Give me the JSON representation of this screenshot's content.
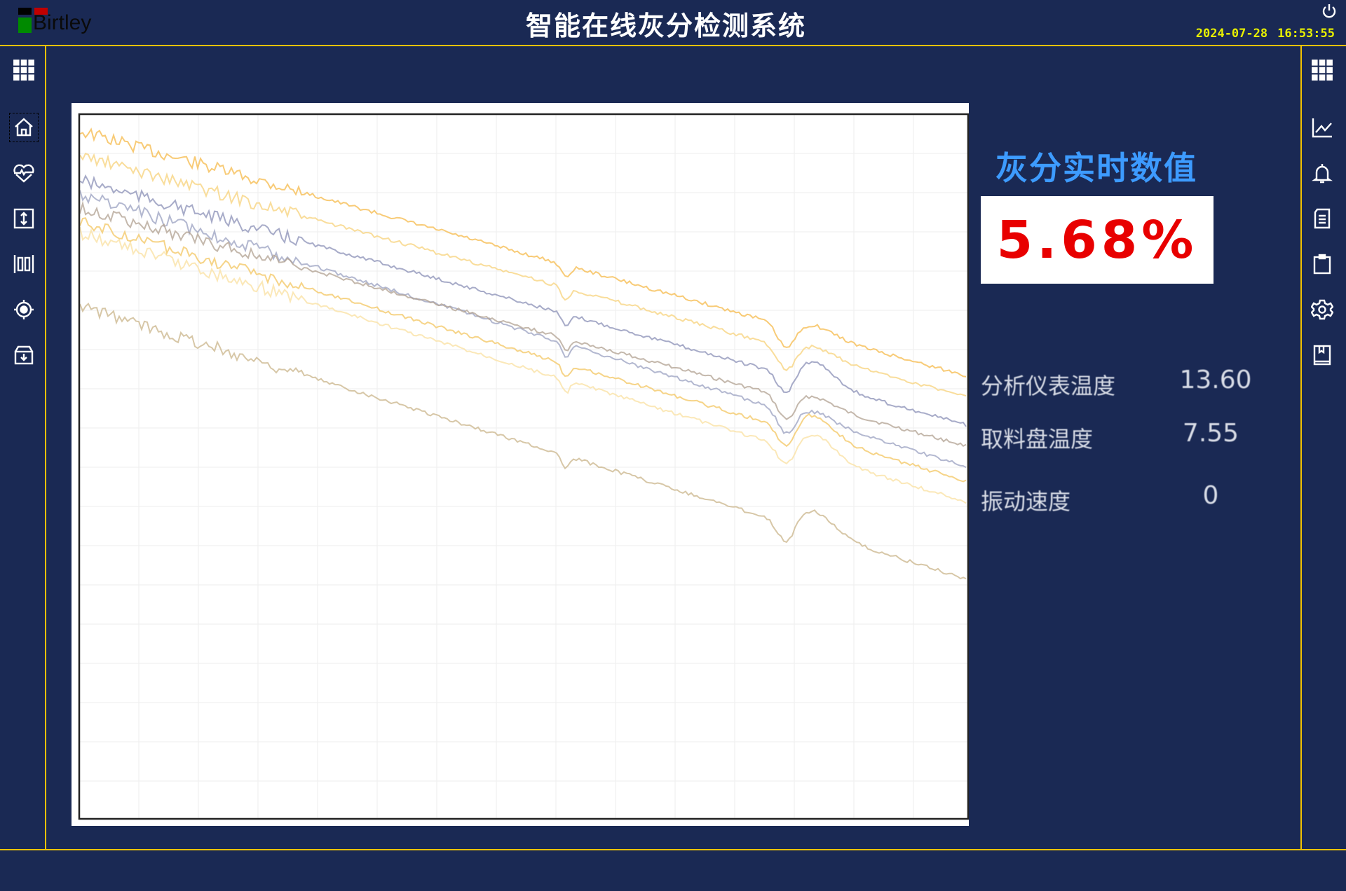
{
  "header": {
    "logo_text": "Birtley",
    "title": "智能在线灰分检测系统",
    "date": "2024-07-28",
    "time": "16:53:55",
    "power_icon": "power-icon"
  },
  "left_sidebar": {
    "items": [
      "grid-menu-icon",
      "home-icon",
      "heart-pulse-icon",
      "vertical-resize-icon",
      "barcode-icon",
      "target-icon",
      "archive-download-icon"
    ]
  },
  "right_sidebar": {
    "items": [
      "grid-menu-icon",
      "line-chart-icon",
      "bell-icon",
      "document-icon",
      "clipboard-icon",
      "gear-icon",
      "book-icon"
    ]
  },
  "chart": {
    "type": "line",
    "series_colors": [
      "#f5b94a",
      "#8a8fb5",
      "#f7d27a",
      "#c9b48a",
      "#9aa0c0",
      "#f9e0a0",
      "#b0a090",
      "#f3c560"
    ]
  },
  "realtime": {
    "title": "灰分实时数值",
    "value": "5.68%",
    "value_color": "#e80000"
  },
  "stats": [
    {
      "label": "分析仪表温度",
      "value": "13.60"
    },
    {
      "label": "取料盘温度",
      "value": "7.55"
    },
    {
      "label": "振动速度",
      "value": "0"
    }
  ],
  "colors": {
    "background": "#1a2954",
    "accent_line": "#f2c200",
    "title_blue": "#3d9bff",
    "clock": "#e8f000"
  }
}
